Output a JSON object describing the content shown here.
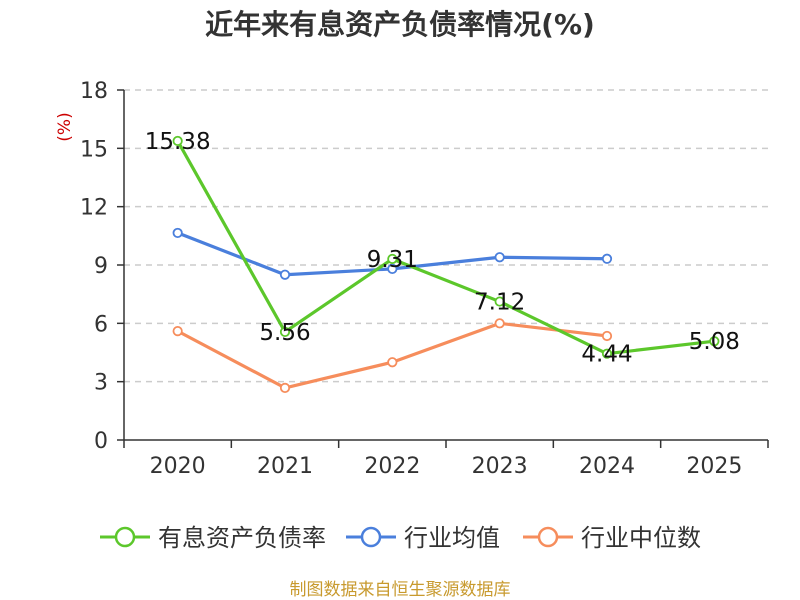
{
  "chart_data": {
    "type": "line",
    "title": "近年来有息资产负债率情况(%)",
    "unit_label": "(%)",
    "categories": [
      "2020",
      "2021",
      "2022",
      "2023",
      "2024",
      "2025"
    ],
    "ylim": [
      0,
      18
    ],
    "yticks": [
      0,
      3,
      6,
      9,
      12,
      15,
      18
    ],
    "grid": true,
    "legend_position": "bottom",
    "series": [
      {
        "name": "有息资产负债率",
        "color": "#5cc72b",
        "values": [
          15.38,
          5.56,
          9.31,
          7.12,
          4.44,
          5.08
        ],
        "labels": [
          "15.38",
          "5.56",
          "9.31",
          "7.12",
          "4.44",
          "5.08"
        ]
      },
      {
        "name": "行业均值",
        "color": "#4a7fdc",
        "values": [
          10.65,
          8.5,
          8.8,
          9.4,
          9.32,
          null
        ]
      },
      {
        "name": "行业中位数",
        "color": "#f68d5c",
        "values": [
          5.6,
          2.68,
          4.0,
          6.0,
          5.35,
          null
        ]
      }
    ],
    "source": "制图数据来自恒生聚源数据库",
    "colors": {
      "title": "#333333",
      "unit": "#cc0000",
      "source": "#c89a2e",
      "grid": "#cccccc",
      "axis": "#333333"
    }
  }
}
